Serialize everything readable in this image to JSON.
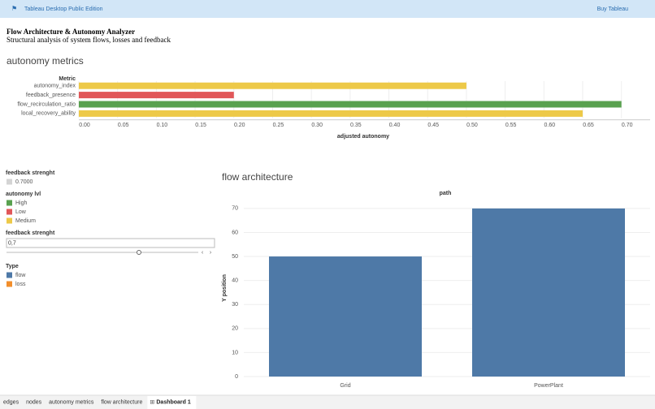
{
  "app_bar": {
    "product": "Tableau Desktop Public Edition",
    "action": "Buy Tableau"
  },
  "header": {
    "title": "Flow Architecture & Autonomy Analyzer",
    "subtitle": "Structural analysis of system flows, losses and feedback"
  },
  "chart_data": [
    {
      "type": "hbar",
      "title": "autonomy metrics",
      "category_header": "Metric",
      "x_label": "adjusted autonomy",
      "categories": [
        "autonomy_index",
        "feedback_presence",
        "flow_recirculation_ratio",
        "local_recovery_ability"
      ],
      "values": [
        0.5,
        0.2,
        0.7,
        0.65
      ],
      "colors": [
        "#edc948",
        "#e15759",
        "#59a14f",
        "#edc948"
      ],
      "xlim": [
        0,
        0.737
      ],
      "xticks": [
        {
          "value": 0,
          "label": "0.00"
        },
        {
          "value": 0.05,
          "label": "0.05"
        },
        {
          "value": 0.1,
          "label": "0.10"
        },
        {
          "value": 0.15,
          "label": "0.15"
        },
        {
          "value": 0.2,
          "label": "0.20"
        },
        {
          "value": 0.25,
          "label": "0.25"
        },
        {
          "value": 0.3,
          "label": "0.30"
        },
        {
          "value": 0.35,
          "label": "0.35"
        },
        {
          "value": 0.4,
          "label": "0.40"
        },
        {
          "value": 0.45,
          "label": "0.45"
        },
        {
          "value": 0.5,
          "label": "0.50"
        },
        {
          "value": 0.55,
          "label": "0.55"
        },
        {
          "value": 0.6,
          "label": "0.60"
        },
        {
          "value": 0.65,
          "label": "0.65"
        },
        {
          "value": 0.7,
          "label": "0.70"
        }
      ],
      "grid": true
    },
    {
      "type": "bar",
      "title": "flow architecture",
      "x_label": "path",
      "y_label": "Y position",
      "categories": [
        "Grid",
        "PowerPlant"
      ],
      "values": [
        50,
        70
      ],
      "color": "#4e79a7",
      "ylim": [
        0,
        73
      ],
      "yticks": [
        0,
        10,
        20,
        30,
        40,
        50,
        60,
        70
      ],
      "grid": true
    }
  ],
  "filters": {
    "feedback_legend": {
      "title": "feedback strenght",
      "items": [
        {
          "label": "0.7000",
          "color": "#d4d4d4"
        }
      ]
    },
    "autonomy_legend": {
      "title": "autonomy lvl",
      "items": [
        {
          "label": "High",
          "color": "#59a14f"
        },
        {
          "label": "Low",
          "color": "#e15759"
        },
        {
          "label": "Medium",
          "color": "#edc948"
        }
      ]
    },
    "feedback_slider": {
      "title": "feedback strenght",
      "value": "0,7"
    },
    "type_legend": {
      "title": "Type",
      "items": [
        {
          "label": "flow",
          "color": "#4e79a7"
        },
        {
          "label": "loss",
          "color": "#f28e2b"
        }
      ]
    }
  },
  "tabs": [
    "edges",
    "nodes",
    "autonomy metrics",
    "flow architecture",
    "Dashboard 1"
  ]
}
